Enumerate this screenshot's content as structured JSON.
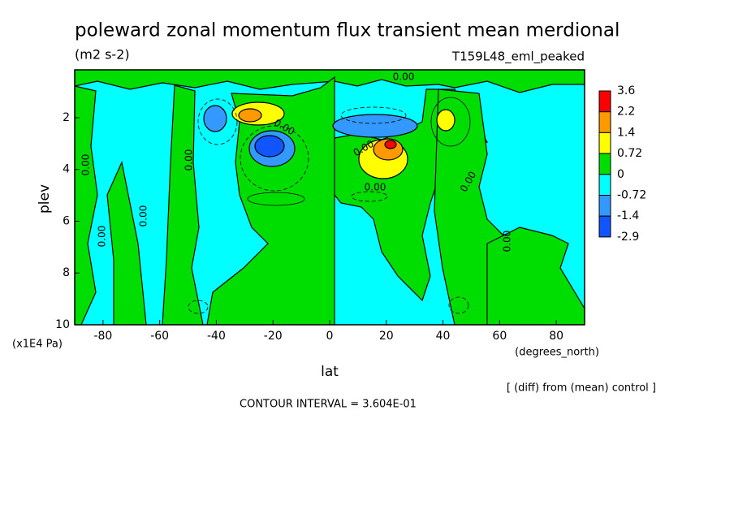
{
  "chart_data": {
    "type": "contour",
    "title": "poleward zonal momentum flux transient mean merdional",
    "subtitle": "(m2 s-2)",
    "run_label": "T159L48_eml_peaked",
    "x_label": "lat",
    "x_unit": "(degrees_north)",
    "y_label": "plev",
    "y_unit": "(x1E4 Pa)",
    "xlim": [
      -90,
      90
    ],
    "xticks": [
      -80,
      -60,
      -40,
      -20,
      0,
      20,
      40,
      60,
      80
    ],
    "ylim": [
      10,
      0.15
    ],
    "yticks": [
      2,
      4,
      6,
      8,
      10
    ],
    "levels": [
      3.6,
      2.2,
      1.4,
      0.72,
      0,
      -0.72,
      -1.4,
      -2.9
    ],
    "level_colors": [
      "#ff0000",
      "#ff9900",
      "#ffff00",
      "#00dd00",
      "#00ffff",
      "#3399ff",
      "#1155ff"
    ],
    "contour_labels": [
      "0.00",
      "0.00",
      "0.00",
      "0.00",
      "0.00",
      "0.00",
      "0.00",
      "0.00",
      "0.00",
      "0.00"
    ],
    "annotation": "[ (diff) from (mean) control ]",
    "contour_interval": "CONTOUR INTERVAL = 3.604E-01"
  }
}
